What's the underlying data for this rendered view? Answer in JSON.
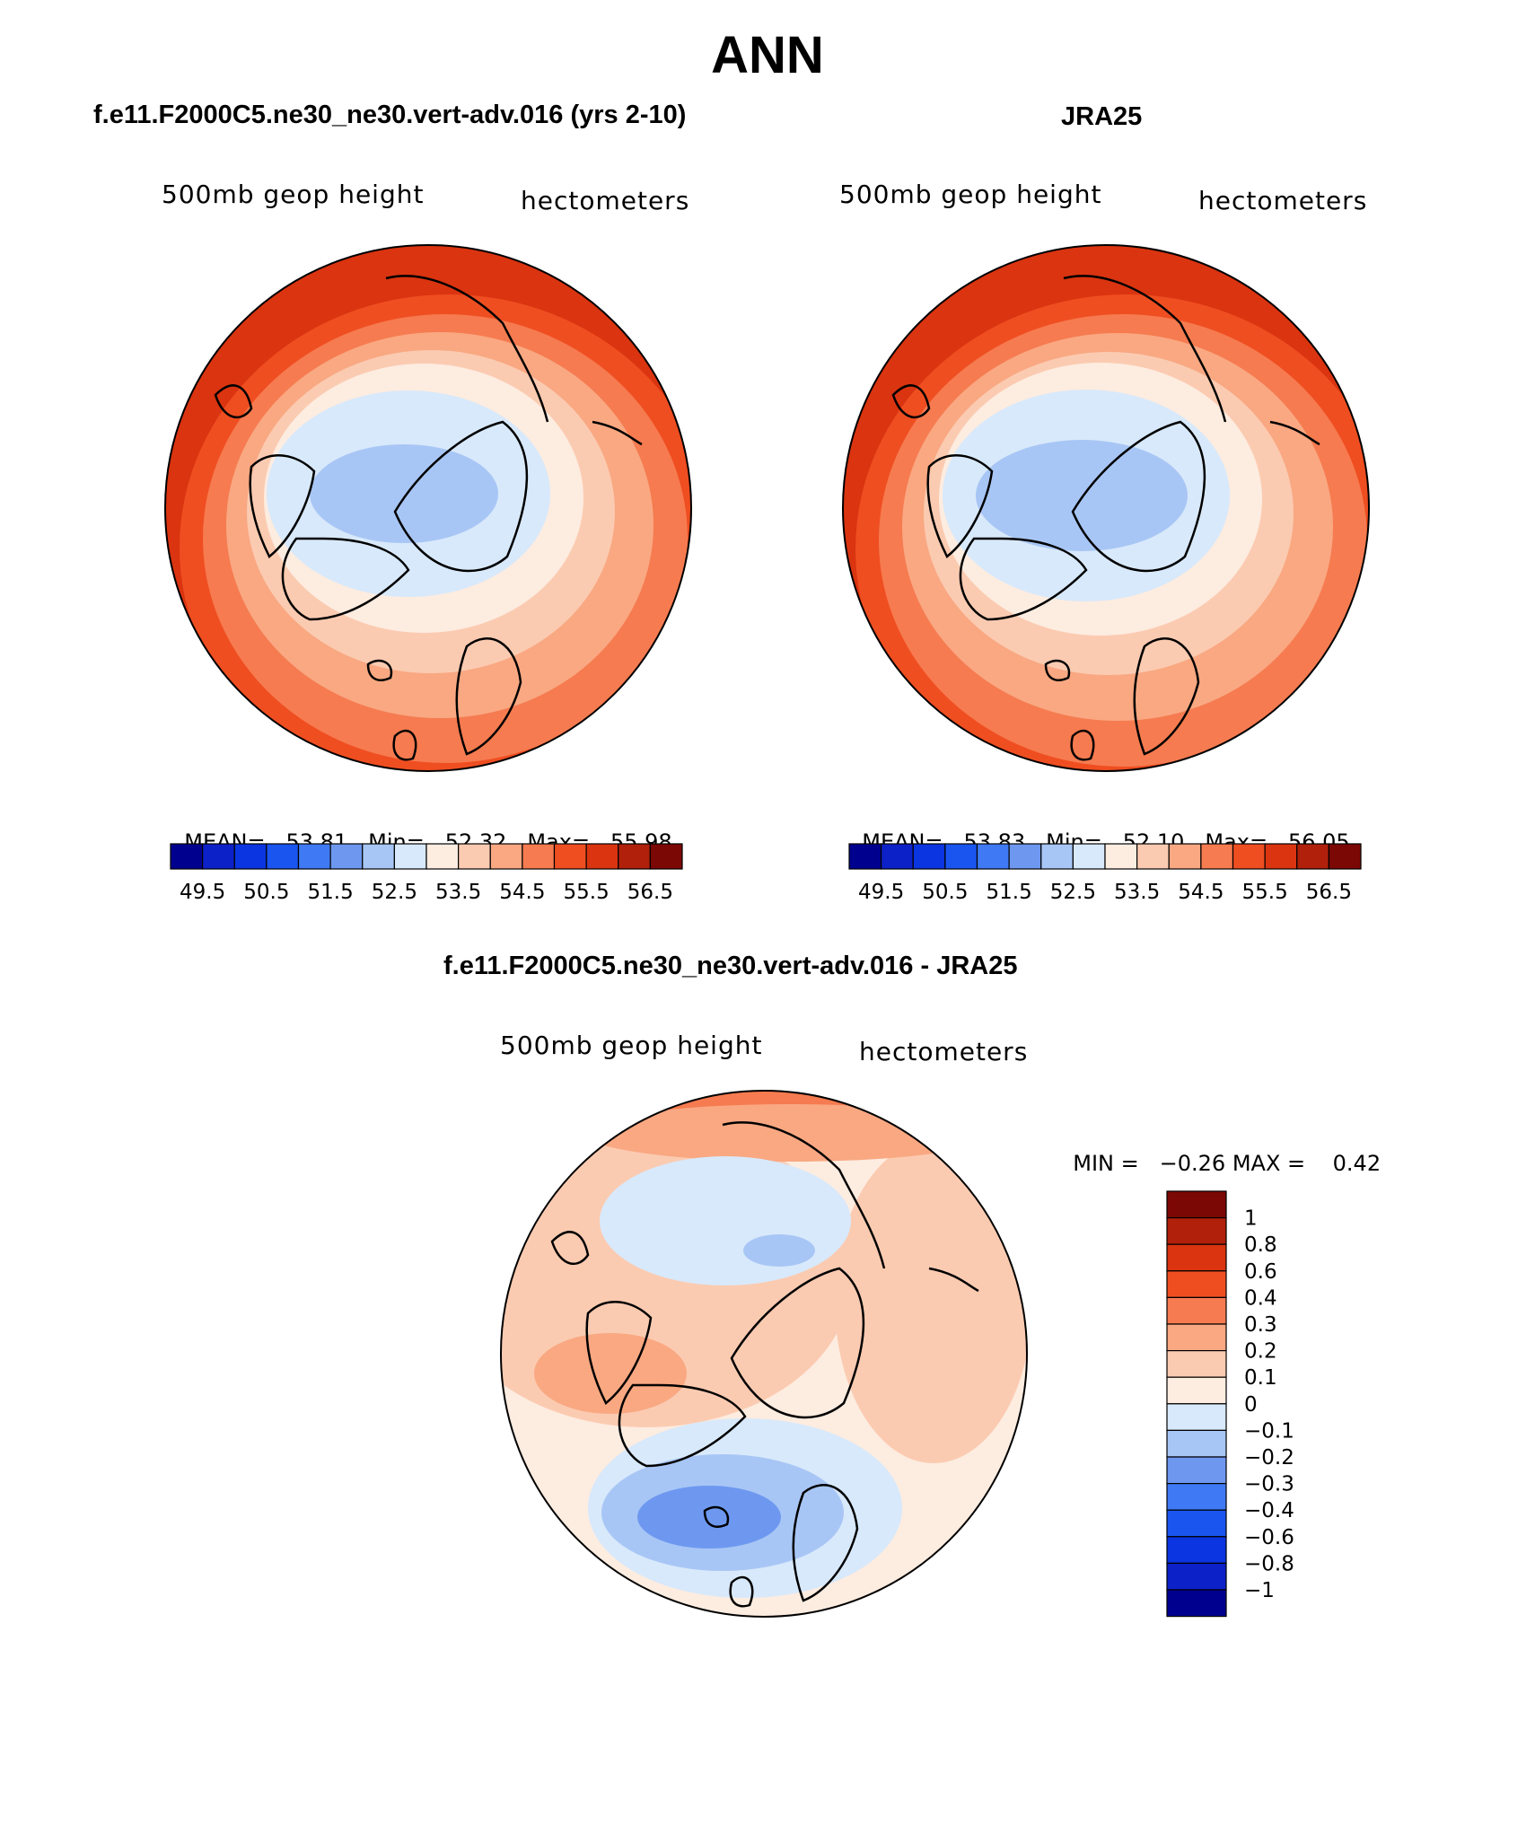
{
  "title": "ANN",
  "panels": {
    "model": {
      "heading": "f.e11.F2000C5.ne30_ne30.vert-adv.016 (yrs 2-10)",
      "variable": "500mb geop height",
      "units": "hectometers",
      "stats": {
        "mean_label": "MEAN=",
        "mean": "53.81",
        "min_label": "Min=",
        "min": "52.32",
        "max_label": "Max=",
        "max": "55.98"
      }
    },
    "obs": {
      "heading": "JRA25",
      "variable": "500mb geop height",
      "units": "hectometers",
      "stats": {
        "mean_label": "MEAN=",
        "mean": "53.83",
        "min_label": "Min=",
        "min": "52.10",
        "max_label": "Max=",
        "max": "56.05"
      }
    },
    "diff": {
      "heading": "f.e11.F2000C5.ne30_ne30.vert-adv.016 - JRA25",
      "variable": "500mb geop height",
      "units": "hectometers",
      "stats": {
        "min_label": "MIN =",
        "min": "−0.26",
        "max_label": "MAX =",
        "max": "0.42"
      }
    }
  },
  "colorbar_fields": {
    "colors": [
      "#00008f",
      "#0d21c9",
      "#0a35e0",
      "#1a55f0",
      "#3f7af4",
      "#6e98f0",
      "#a8c6f5",
      "#d8e9fb",
      "#fdece0",
      "#fbcbb1",
      "#f9a882",
      "#f67b50",
      "#ef4e21",
      "#da3410",
      "#b0200a",
      "#7b0805"
    ],
    "tick_labels": [
      "49.5",
      "50.5",
      "51.5",
      "52.5",
      "53.5",
      "54.5",
      "55.5",
      "56.5"
    ]
  },
  "colorbar_diff": {
    "colors": [
      "#00008f",
      "#0d21c9",
      "#0a35e0",
      "#1a55f0",
      "#3f7af4",
      "#6e98f0",
      "#a8c6f5",
      "#d8e9fb",
      "#fdece0",
      "#fbcbb1",
      "#f9a882",
      "#f67b50",
      "#ef4e21",
      "#da3410",
      "#b0200a",
      "#7b0805"
    ],
    "tick_labels": [
      "1",
      "0.8",
      "0.6",
      "0.4",
      "0.3",
      "0.2",
      "0.1",
      "0",
      "−0.1",
      "−0.2",
      "−0.3",
      "−0.4",
      "−0.6",
      "−0.8",
      "−1"
    ]
  }
}
